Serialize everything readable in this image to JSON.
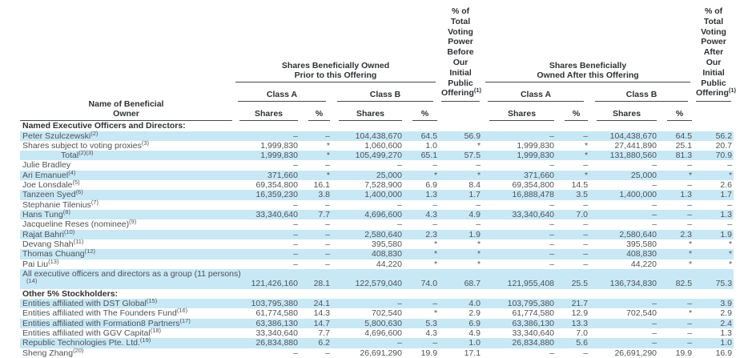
{
  "colors": {
    "highlight": "#c8e8f6",
    "text": "#4e5256",
    "bold_text": "#2e3133",
    "rule_line": "#4a4a4a"
  },
  "table": {
    "name_header": {
      "lines": [
        "Name of Beneficial",
        "Owner"
      ]
    },
    "prior_group": {
      "lines": [
        "Shares Beneficially Owned",
        "Prior to this Offering"
      ]
    },
    "after_group": {
      "lines": [
        "Shares Beneficially",
        "Owned After this Offering"
      ]
    },
    "voting_before": {
      "lines": [
        "% of Total",
        "Voting",
        "Power",
        "Before",
        "Our Initial",
        "Public",
        "Offering"
      ],
      "sup": "(1)"
    },
    "voting_after": {
      "lines": [
        "% of Total",
        "Voting",
        "Power",
        "After",
        "Our Initial",
        "Public",
        "Offering"
      ],
      "sup": "(1)"
    },
    "class_a": "Class A",
    "class_b": "Class B",
    "shares_label": "Shares",
    "pct_label": "%",
    "rows": [
      {
        "type": "section",
        "label": "Named Executive Officers and Directors:",
        "shaded": false
      },
      {
        "type": "data",
        "label": "Peter Szulczewski",
        "sup": "(2)",
        "shaded": true,
        "cells": [
          "–",
          "–",
          "104,438,670",
          "64.5",
          "56.9",
          "–",
          "–",
          "104,438,670",
          "64.5",
          "56.2"
        ]
      },
      {
        "type": "data",
        "label": "Shares subject to voting proxies",
        "sup": "(3)",
        "shaded": false,
        "cells": [
          "1,999,830",
          "*",
          "1,060,600",
          "1.0",
          "*",
          "1,999,830",
          "*",
          "27,441,890",
          "25.1",
          "20.7"
        ]
      },
      {
        "type": "data",
        "label": "Total",
        "sup": "(2)(3)",
        "indent": true,
        "shaded": true,
        "cells": [
          "1,999,830",
          "*",
          "105,499,270",
          "65.1",
          "57.5",
          "1,999,830",
          "*",
          "131,880,560",
          "81.3",
          "70.9"
        ]
      },
      {
        "type": "data",
        "label": "Julie Bradley",
        "shaded": false,
        "cells": [
          "–",
          "–",
          "–",
          "–",
          "–",
          "–",
          "–",
          "–",
          "–",
          "–"
        ]
      },
      {
        "type": "data",
        "label": "Ari Emanuel",
        "sup": "(4)",
        "shaded": true,
        "cells": [
          "371,660",
          "*",
          "25,000",
          "*",
          "*",
          "371,660",
          "*",
          "25,000",
          "*",
          "*"
        ]
      },
      {
        "type": "data",
        "label": "Joe Lonsdale",
        "sup": "(5)",
        "shaded": false,
        "cells": [
          "69,354,800",
          "16.1",
          "7,528,900",
          "6.9",
          "8.4",
          "69,354,800",
          "14.5",
          "–",
          "–",
          "2.6"
        ]
      },
      {
        "type": "data",
        "label": "Tanzeen Syed",
        "sup": "(6)",
        "shaded": true,
        "cells": [
          "16,359,230",
          "3.8",
          "1,400,000",
          "1.3",
          "1.7",
          "16,888,478",
          "3.5",
          "1,400,000",
          "1.3",
          "1.7"
        ]
      },
      {
        "type": "data",
        "label": "Stephanie Tilenius",
        "sup": "(7)",
        "shaded": false,
        "cells": [
          "–",
          "–",
          "–",
          "–",
          "–",
          "–",
          "–",
          "–",
          "–",
          "–"
        ]
      },
      {
        "type": "data",
        "label": "Hans Tung",
        "sup": "(8)",
        "shaded": true,
        "cells": [
          "33,340,640",
          "7.7",
          "4,696,600",
          "4.3",
          "4.9",
          "33,340,640",
          "7.0",
          "–",
          "–",
          "1.3"
        ]
      },
      {
        "type": "data",
        "label": "Jacqueline Reses (nominee)",
        "sup": "(9)",
        "shaded": false,
        "cells": [
          "–",
          "–",
          "–",
          "–",
          "–",
          "–",
          "–",
          "–",
          "–",
          "–"
        ]
      },
      {
        "type": "data",
        "label": "Rajat Bahri",
        "sup": "(10)",
        "shaded": true,
        "cells": [
          "–",
          "–",
          "2,580,640",
          "2.3",
          "1.9",
          "–",
          "–",
          "2,580,640",
          "2.3",
          "1.9"
        ]
      },
      {
        "type": "data",
        "label": "Devang Shah",
        "sup": "(11)",
        "shaded": false,
        "cells": [
          "–",
          "–",
          "395,580",
          "*",
          "*",
          "–",
          "–",
          "395,580",
          "*",
          "*"
        ]
      },
      {
        "type": "data",
        "label": "Thomas Chuang",
        "sup": "(12)",
        "shaded": true,
        "cells": [
          "–",
          "–",
          "408,830",
          "*",
          "*",
          "–",
          "–",
          "408,830",
          "*",
          "*"
        ]
      },
      {
        "type": "data",
        "label": "Pai Liu",
        "sup": "(13)",
        "shaded": false,
        "cells": [
          "–",
          "–",
          "44,220",
          "*",
          "*",
          "–",
          "–",
          "44,220",
          "*",
          "*"
        ]
      },
      {
        "type": "data",
        "label": "All executive officers and directors as a group (11 persons)",
        "sup": "(14)",
        "sup_newline": true,
        "shaded": true,
        "cells": [
          "121,426,160",
          "28.1",
          "122,579,040",
          "74.0",
          "68.7",
          "121,955,408",
          "25.5",
          "136,734,830",
          "82.5",
          "75.3"
        ]
      },
      {
        "type": "section",
        "label": "Other 5% Stockholders:",
        "shaded": false
      },
      {
        "type": "data",
        "label": "Entities affiliated with DST Global",
        "sup": "(15)",
        "shaded": true,
        "cells": [
          "103,795,380",
          "24.1",
          "–",
          "–",
          "4.0",
          "103,795,380",
          "21.7",
          "–",
          "–",
          "3.9"
        ]
      },
      {
        "type": "data",
        "label": "Entities affiliated with The Founders Fund",
        "sup": "(16)",
        "shaded": false,
        "cells": [
          "61,774,580",
          "14.3",
          "702,540",
          "*",
          "2.9",
          "61,774,580",
          "12.9",
          "702,540",
          "*",
          "2.9"
        ]
      },
      {
        "type": "data",
        "label": "Entities affiliated with Formation8 Partners",
        "sup": "(17)",
        "shaded": true,
        "cells": [
          "63,386,130",
          "14.7",
          "5,800,630",
          "5.3",
          "6.9",
          "63,386,130",
          "13.3",
          "–",
          "–",
          "2.4"
        ]
      },
      {
        "type": "data",
        "label": "Entities affiliated with GGV Capital",
        "sup": "(18)",
        "shaded": false,
        "cells": [
          "33,340,640",
          "7.7",
          "4,696,600",
          "4.3",
          "4.9",
          "33,340,640",
          "7.0",
          "–",
          "–",
          "1.3"
        ]
      },
      {
        "type": "data",
        "label": "Republic Technologies Pte. Ltd.",
        "sup": "(19)",
        "shaded": true,
        "cells": [
          "26,834,880",
          "6.2",
          "–",
          "–",
          "1.0",
          "26,834,880",
          "5.6",
          "–",
          "–",
          "1.0"
        ]
      },
      {
        "type": "data",
        "label": "Sheng Zhang",
        "sup": "(20)",
        "shaded": false,
        "cells": [
          "–",
          "–",
          "26,691,290",
          "19.9",
          "17.1",
          "–",
          "–",
          "26,691,290",
          "19.9",
          "16.9"
        ]
      }
    ]
  }
}
